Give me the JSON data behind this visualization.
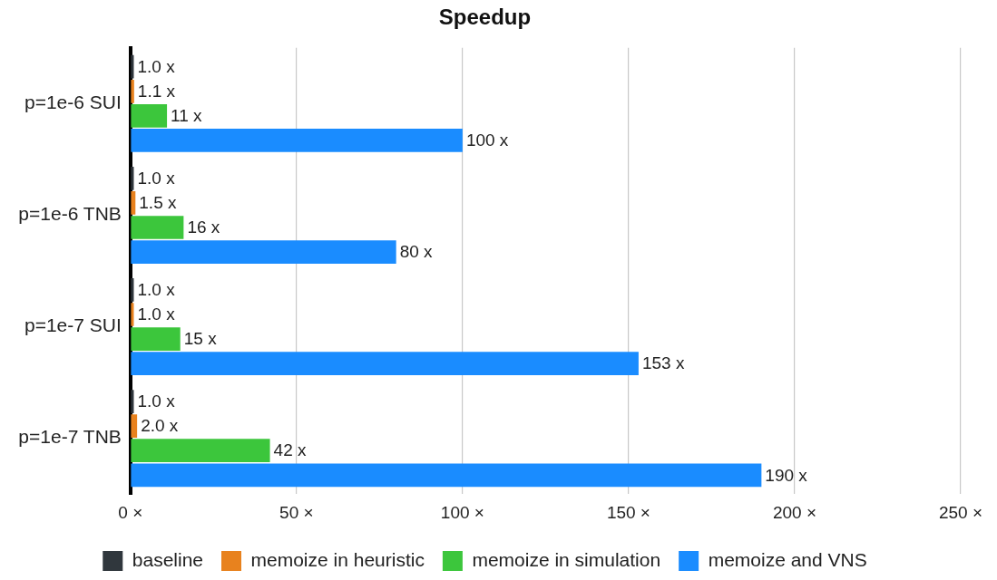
{
  "chart_data": {
    "type": "bar",
    "orientation": "horizontal",
    "title": "Speedup",
    "categories": [
      "p=1e-6 SUI",
      "p=1e-6 TNB",
      "p=1e-7 SUI",
      "p=1e-7 TNB"
    ],
    "series": [
      {
        "name": "baseline",
        "color": "#30373d",
        "values": [
          1.0,
          1.0,
          1.0,
          1.0
        ],
        "value_labels": [
          "1.0 x",
          "1.0 x",
          "1.0 x",
          "1.0 x"
        ]
      },
      {
        "name": "memoize in heuristic",
        "color": "#e8821e",
        "values": [
          1.1,
          1.5,
          1.0,
          2.0
        ],
        "value_labels": [
          "1.1 x",
          "1.5 x",
          "1.0 x",
          "2.0 x"
        ]
      },
      {
        "name": "memoize in simulation",
        "color": "#3cc63c",
        "values": [
          11,
          16,
          15,
          42
        ],
        "value_labels": [
          "11 x",
          "16 x",
          "15 x",
          "42 x"
        ]
      },
      {
        "name": "memoize and VNS",
        "color": "#1a8cff",
        "values": [
          100,
          80,
          153,
          190
        ],
        "value_labels": [
          "100 x",
          "80 x",
          "153 x",
          "190 x"
        ]
      }
    ],
    "xlim": [
      0,
      250
    ],
    "xticks": [
      {
        "value": 0,
        "label": "0 ×"
      },
      {
        "value": 50,
        "label": "50 ×"
      },
      {
        "value": 100,
        "label": "100 ×"
      },
      {
        "value": 150,
        "label": "150 ×"
      },
      {
        "value": 200,
        "label": "200 ×"
      },
      {
        "value": 250,
        "label": "250 ×"
      }
    ],
    "grid": "x",
    "legend": "bottom"
  }
}
